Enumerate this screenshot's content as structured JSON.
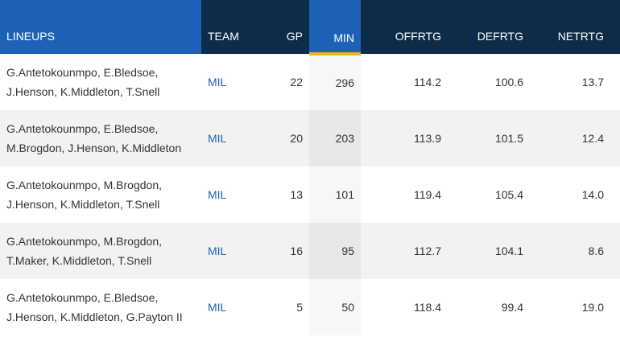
{
  "table": {
    "headers": {
      "lineups": "LINEUPS",
      "team": "TEAM",
      "gp": "GP",
      "min": "MIN",
      "offrtg": "OFFRTG",
      "defrtg": "DEFRTG",
      "netrtg": "NETRTG"
    },
    "rows": [
      {
        "line1": "G.Antetokounmpo, E.Bledsoe,",
        "line2": "J.Henson, K.Middleton, T.Snell",
        "team": "MIL",
        "gp": "22",
        "min": "296",
        "offrtg": "114.2",
        "defrtg": "100.6",
        "netrtg": "13.7"
      },
      {
        "line1": "G.Antetokounmpo, E.Bledsoe,",
        "line2": "M.Brogdon, J.Henson, K.Middleton",
        "team": "MIL",
        "gp": "20",
        "min": "203",
        "offrtg": "113.9",
        "defrtg": "101.5",
        "netrtg": "12.4"
      },
      {
        "line1": "G.Antetokounmpo, M.Brogdon,",
        "line2": "J.Henson, K.Middleton, T.Snell",
        "team": "MIL",
        "gp": "13",
        "min": "101",
        "offrtg": "119.4",
        "defrtg": "105.4",
        "netrtg": "14.0"
      },
      {
        "line1": "G.Antetokounmpo, M.Brogdon,",
        "line2": "T.Maker, K.Middleton, T.Snell",
        "team": "MIL",
        "gp": "16",
        "min": "95",
        "offrtg": "112.7",
        "defrtg": "104.1",
        "netrtg": "8.6"
      },
      {
        "line1": "G.Antetokounmpo, E.Bledsoe,",
        "line2": "J.Henson, K.Middleton, G.Payton II",
        "team": "MIL",
        "gp": "5",
        "min": "50",
        "offrtg": "118.4",
        "defrtg": "99.4",
        "netrtg": "19.0"
      }
    ]
  },
  "colors": {
    "header_dark": "#0c2c4a",
    "header_blue": "#1d62b6",
    "sort_underline": "#f2b21c",
    "link": "#1d62b6"
  }
}
